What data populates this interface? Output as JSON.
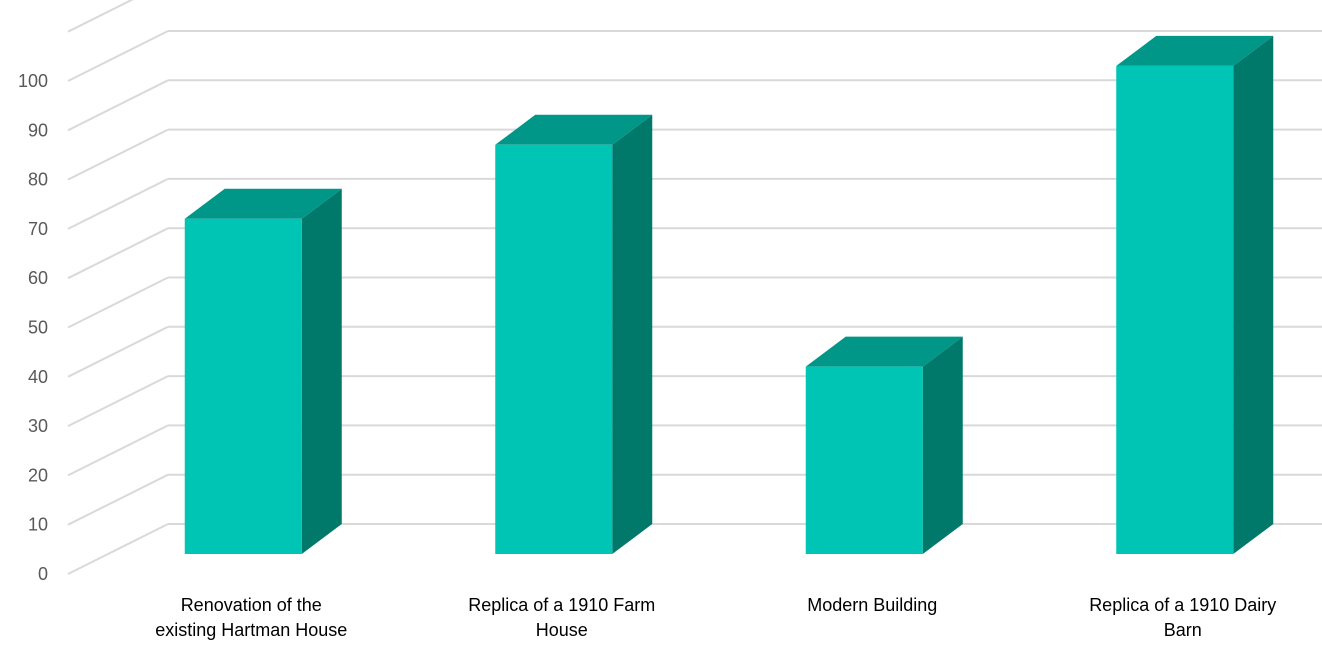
{
  "chart_data": {
    "type": "bar",
    "style": "3d-column",
    "categories": [
      [
        "Renovation of the",
        "existing Hartman House"
      ],
      [
        "Replica of a 1910 Farm",
        "House"
      ],
      [
        "Modern Building"
      ],
      [
        "Replica of a 1910 Dairy",
        "Barn"
      ]
    ],
    "values": [
      68,
      83,
      38,
      99
    ],
    "y_ticks": [
      "0",
      "10",
      "20",
      "30",
      "40",
      "50",
      "60",
      "70",
      "80",
      "90",
      "100"
    ],
    "ylim": [
      0,
      110
    ],
    "grid": true,
    "legend": "none",
    "title": "",
    "xlabel": "",
    "ylabel": "",
    "colors": {
      "front": "#00C4B4",
      "top": "#009688",
      "side": "#00796B",
      "grid": "#D9D9D9",
      "tick_text": "#595959",
      "category_text": "#000000"
    }
  }
}
